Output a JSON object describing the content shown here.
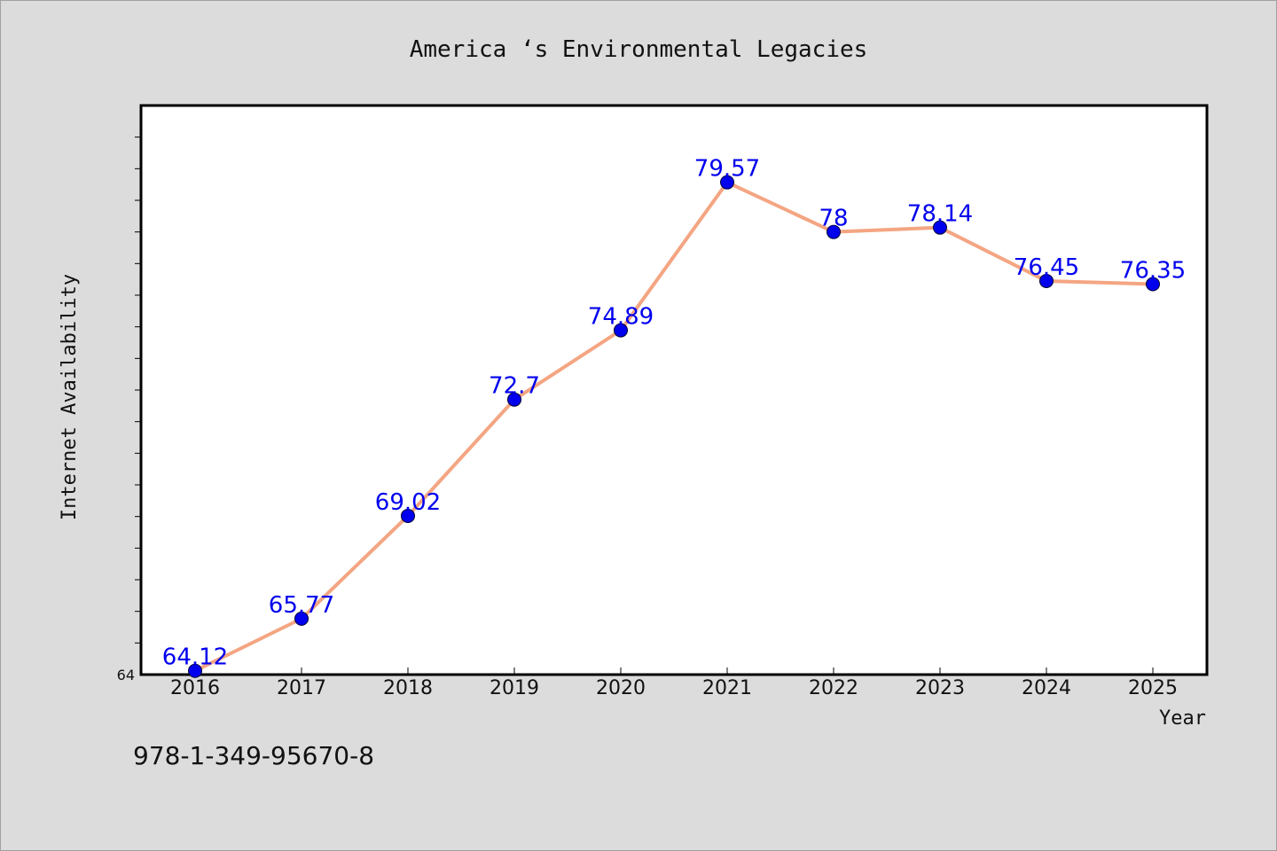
{
  "chart_data": {
    "type": "line",
    "title": "America ‘s Environmental Legacies",
    "xlabel": "Year",
    "ylabel": "Internet Availability",
    "categories": [
      "2016",
      "2017",
      "2018",
      "2019",
      "2020",
      "2021",
      "2022",
      "2023",
      "2024",
      "2025"
    ],
    "values": [
      64.12,
      65.77,
      69.02,
      72.7,
      74.89,
      79.57,
      78,
      78.14,
      76.45,
      76.35
    ],
    "data_labels": [
      "64.12",
      "65.77",
      "69.02",
      "72.7",
      "74.89",
      "79.57",
      "78",
      "78.14",
      "76.45",
      "76.35"
    ],
    "ylim": [
      64,
      82
    ],
    "y_tick_labels": [
      "64"
    ],
    "grid": false,
    "legend": "none",
    "colors": {
      "line": "#f4a582",
      "marker": "#0000ee",
      "label": "#0000ee",
      "plot_background": "#ffffff",
      "page_background": "#dcdcdc"
    }
  },
  "footer": {
    "isbn": "978-1-349-95670-8"
  }
}
